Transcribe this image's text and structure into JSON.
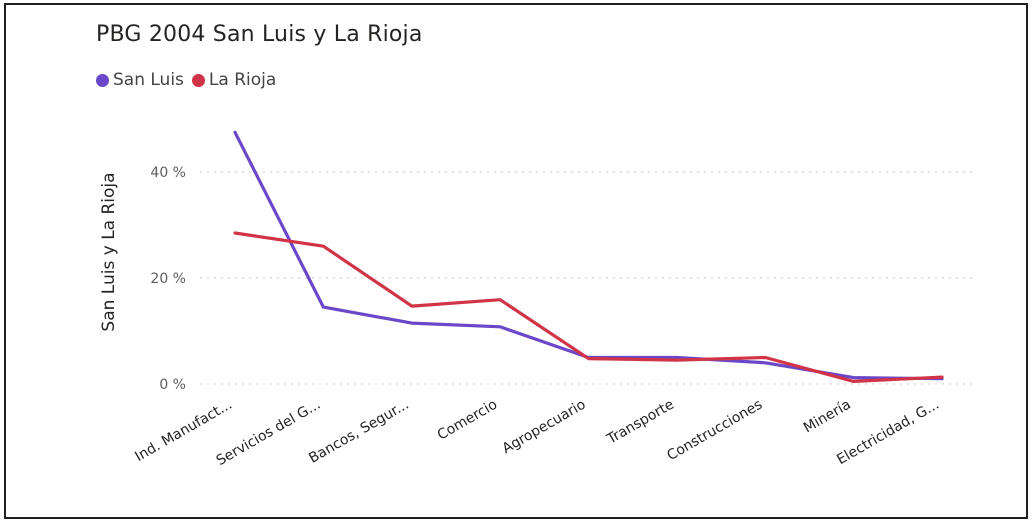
{
  "chart_data": {
    "type": "line",
    "title": "PBG 2004 San Luis y La Rioja",
    "ylabel": "San Luis y La Rioja",
    "xlabel": "",
    "categories": [
      "Ind. Manufact...",
      "Servicios del G...",
      "Bancos, Segur...",
      "Comercio",
      "Agropecuario",
      "Transporte",
      "Construcciones",
      "Minería",
      "Electricidad, G..."
    ],
    "y_ticks": [
      {
        "value": 0,
        "label": "0 %"
      },
      {
        "value": 20,
        "label": "20 %"
      },
      {
        "value": 40,
        "label": "40 %"
      }
    ],
    "ylim": [
      0,
      48
    ],
    "grid": true,
    "legend_position": "top-left",
    "series": [
      {
        "name": "San Luis",
        "color": "#6a48c9",
        "values": [
          47.5,
          14.5,
          11.5,
          10.8,
          5.0,
          5.0,
          4.0,
          1.2,
          1.0
        ]
      },
      {
        "name": "La Rioja",
        "color": "#d13446",
        "values": [
          28.5,
          26.0,
          14.7,
          15.9,
          4.8,
          4.5,
          5.0,
          0.5,
          1.3
        ]
      }
    ]
  }
}
